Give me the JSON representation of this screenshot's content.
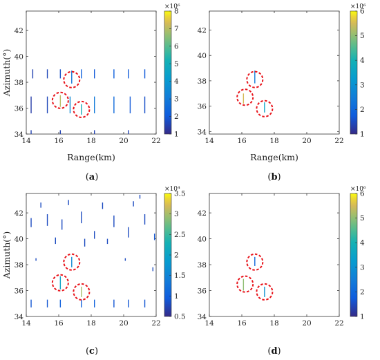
{
  "chart_data": [
    {
      "panel": "a",
      "type": "heatmap",
      "caption": "(a)",
      "xlabel": "Range(km)",
      "ylabel": "Azimuth(°)",
      "xlim": [
        14,
        22
      ],
      "ylim": [
        34,
        43.5
      ],
      "xticks": [
        "14",
        "16",
        "18",
        "20",
        "22"
      ],
      "yticks": [
        "34",
        "36",
        "38",
        "40",
        "42"
      ],
      "colorbar": {
        "min": 1,
        "max": 8,
        "multiplier": "×10⁶",
        "ticks": [
          "1",
          "2",
          "3",
          "4",
          "5",
          "6",
          "7",
          "8"
        ]
      },
      "strokes": [
        {
          "x": 14.4,
          "y0": 38.3,
          "y1": 39.0,
          "v": 1.5
        },
        {
          "x": 15.3,
          "y0": 38.3,
          "y1": 39.0,
          "v": 1.6
        },
        {
          "x": 16.1,
          "y0": 38.3,
          "y1": 39.0,
          "v": 1.8
        },
        {
          "x": 16.8,
          "y0": 37.9,
          "y1": 38.9,
          "v": 2.8
        },
        {
          "x": 17.4,
          "y0": 38.3,
          "y1": 39.0,
          "v": 2.2
        },
        {
          "x": 18.2,
          "y0": 38.3,
          "y1": 39.0,
          "v": 2.0
        },
        {
          "x": 19.4,
          "y0": 38.3,
          "y1": 39.0,
          "v": 2.2
        },
        {
          "x": 20.3,
          "y0": 38.3,
          "y1": 39.0,
          "v": 2.0
        },
        {
          "x": 21.3,
          "y0": 38.3,
          "y1": 39.0,
          "v": 2.0
        },
        {
          "x": 14.3,
          "y0": 35.6,
          "y1": 36.9,
          "v": 1.4
        },
        {
          "x": 15.3,
          "y0": 35.6,
          "y1": 36.9,
          "v": 1.6
        },
        {
          "x": 16.1,
          "y0": 36.1,
          "y1": 37.0,
          "v": 7.0
        },
        {
          "x": 16.7,
          "y0": 35.6,
          "y1": 36.9,
          "v": 3.5
        },
        {
          "x": 17.4,
          "y0": 35.5,
          "y1": 36.3,
          "v": 5.0
        },
        {
          "x": 18.2,
          "y0": 35.6,
          "y1": 36.9,
          "v": 3.0
        },
        {
          "x": 19.4,
          "y0": 35.6,
          "y1": 36.9,
          "v": 2.5
        },
        {
          "x": 20.4,
          "y0": 35.6,
          "y1": 36.9,
          "v": 2.0
        },
        {
          "x": 21.3,
          "y0": 35.6,
          "y1": 36.9,
          "v": 1.8
        },
        {
          "x": 14.3,
          "y0": 34.0,
          "y1": 34.3,
          "v": 1.5
        },
        {
          "x": 16.1,
          "y0": 34.0,
          "y1": 34.3,
          "v": 1.5
        },
        {
          "x": 18.2,
          "y0": 34.0,
          "y1": 34.3,
          "v": 1.5
        },
        {
          "x": 20.3,
          "y0": 34.0,
          "y1": 34.3,
          "v": 1.5
        }
      ],
      "circles": [
        {
          "x": 16.8,
          "y": 38.2
        },
        {
          "x": 16.1,
          "y": 36.6
        },
        {
          "x": 17.4,
          "y": 35.9
        }
      ]
    },
    {
      "panel": "b",
      "type": "heatmap",
      "caption": "(b)",
      "xlabel": "Range(km)",
      "ylabel": "",
      "xlim": [
        14,
        22
      ],
      "ylim": [
        33.8,
        43.5
      ],
      "xticks": [
        "14",
        "16",
        "18",
        "20",
        "22"
      ],
      "yticks": [
        "34",
        "36",
        "38",
        "40",
        "42"
      ],
      "colorbar": {
        "min": 1,
        "max": 6,
        "multiplier": "×10⁶",
        "ticks": [
          "1",
          "2",
          "3",
          "4",
          "5",
          "6"
        ]
      },
      "strokes": [
        {
          "x": 16.8,
          "y0": 37.8,
          "y1": 38.8,
          "v": 2.5
        },
        {
          "x": 16.1,
          "y0": 36.2,
          "y1": 37.0,
          "v": 5.5
        },
        {
          "x": 17.4,
          "y0": 35.5,
          "y1": 36.3,
          "v": 3.5
        }
      ],
      "circles": [
        {
          "x": 16.8,
          "y": 38.1
        },
        {
          "x": 16.2,
          "y": 36.7
        },
        {
          "x": 17.4,
          "y": 35.8
        }
      ]
    },
    {
      "panel": "c",
      "type": "heatmap",
      "caption": "(c)",
      "xlabel": "",
      "ylabel": "Azimuth(°)",
      "xlim": [
        14,
        22
      ],
      "ylim": [
        34,
        43.5
      ],
      "xticks": [
        "14",
        "16",
        "18",
        "20",
        "22"
      ],
      "yticks": [
        "34",
        "36",
        "38",
        "40",
        "42"
      ],
      "colorbar": {
        "min": 0.5,
        "max": 3.5,
        "multiplier": "×10⁴",
        "ticks": [
          "0.5",
          "1",
          "1.5",
          "2",
          "2.5",
          "3",
          "3.5"
        ]
      },
      "strokes": [
        {
          "x": 14.3,
          "y0": 34.7,
          "y1": 35.3,
          "v": 0.9
        },
        {
          "x": 15.3,
          "y0": 34.7,
          "y1": 35.3,
          "v": 0.9
        },
        {
          "x": 16.1,
          "y0": 34.7,
          "y1": 35.3,
          "v": 1.0
        },
        {
          "x": 17.4,
          "y0": 34.7,
          "y1": 35.3,
          "v": 1.0
        },
        {
          "x": 18.2,
          "y0": 34.7,
          "y1": 35.3,
          "v": 1.0
        },
        {
          "x": 19.4,
          "y0": 34.7,
          "y1": 35.3,
          "v": 0.9
        },
        {
          "x": 20.3,
          "y0": 34.7,
          "y1": 35.3,
          "v": 0.9
        },
        {
          "x": 21.3,
          "y0": 34.7,
          "y1": 35.3,
          "v": 0.9
        },
        {
          "x": 16.1,
          "y0": 36.1,
          "y1": 37.1,
          "v": 2.0
        },
        {
          "x": 16.8,
          "y0": 37.8,
          "y1": 38.6,
          "v": 1.6
        },
        {
          "x": 17.4,
          "y0": 35.5,
          "y1": 36.3,
          "v": 3.0
        },
        {
          "x": 15.3,
          "y0": 41.0,
          "y1": 41.9,
          "v": 0.8
        },
        {
          "x": 16.2,
          "y0": 40.7,
          "y1": 41.5,
          "v": 0.8
        },
        {
          "x": 17.4,
          "y0": 41.2,
          "y1": 42.1,
          "v": 0.8
        },
        {
          "x": 19.4,
          "y0": 40.9,
          "y1": 41.8,
          "v": 0.8
        },
        {
          "x": 20.3,
          "y0": 40.1,
          "y1": 40.9,
          "v": 0.8
        },
        {
          "x": 21.3,
          "y0": 41.1,
          "y1": 41.9,
          "v": 0.8
        },
        {
          "x": 14.3,
          "y0": 40.9,
          "y1": 41.6,
          "v": 0.8
        },
        {
          "x": 18.2,
          "y0": 40.0,
          "y1": 40.6,
          "v": 0.8
        },
        {
          "x": 15.8,
          "y0": 39.6,
          "y1": 40.1,
          "v": 0.8
        },
        {
          "x": 17.6,
          "y0": 39.4,
          "y1": 40.0,
          "v": 0.8
        },
        {
          "x": 14.9,
          "y0": 42.4,
          "y1": 42.8,
          "v": 0.8
        },
        {
          "x": 16.6,
          "y0": 42.6,
          "y1": 43.0,
          "v": 0.8
        },
        {
          "x": 18.7,
          "y0": 42.3,
          "y1": 42.8,
          "v": 0.8
        },
        {
          "x": 20.6,
          "y0": 42.5,
          "y1": 42.9,
          "v": 0.8
        },
        {
          "x": 21.0,
          "y0": 43.1,
          "y1": 43.4,
          "v": 0.8
        },
        {
          "x": 19.0,
          "y0": 39.6,
          "y1": 40.0,
          "v": 0.8
        },
        {
          "x": 21.9,
          "y0": 39.9,
          "y1": 40.4,
          "v": 0.9
        },
        {
          "x": 21.8,
          "y0": 37.5,
          "y1": 37.8,
          "v": 0.8
        },
        {
          "x": 14.6,
          "y0": 38.3,
          "y1": 38.5,
          "v": 0.8
        },
        {
          "x": 20.1,
          "y0": 38.3,
          "y1": 38.5,
          "v": 0.8
        }
      ],
      "circles": [
        {
          "x": 16.8,
          "y": 38.2
        },
        {
          "x": 16.1,
          "y": 36.6
        },
        {
          "x": 17.4,
          "y": 35.9
        }
      ]
    },
    {
      "panel": "d",
      "type": "heatmap",
      "caption": "(d)",
      "xlabel": "",
      "ylabel": "",
      "xlim": [
        14,
        22
      ],
      "ylim": [
        34,
        43.5
      ],
      "xticks": [
        "14",
        "16",
        "18",
        "20",
        "22"
      ],
      "yticks": [
        "34",
        "36",
        "38",
        "40",
        "42"
      ],
      "colorbar": {
        "min": 1,
        "max": 6,
        "multiplier": "×10⁶",
        "ticks": [
          "1",
          "2",
          "3",
          "4",
          "5",
          "6"
        ]
      },
      "strokes": [
        {
          "x": 16.8,
          "y0": 37.9,
          "y1": 38.6,
          "v": 2.0
        },
        {
          "x": 16.1,
          "y0": 36.0,
          "y1": 36.9,
          "v": 5.0
        },
        {
          "x": 17.4,
          "y0": 35.5,
          "y1": 36.3,
          "v": 3.0
        }
      ],
      "circles": [
        {
          "x": 16.8,
          "y": 38.2
        },
        {
          "x": 16.2,
          "y": 36.5
        },
        {
          "x": 17.4,
          "y": 35.9
        }
      ]
    }
  ]
}
